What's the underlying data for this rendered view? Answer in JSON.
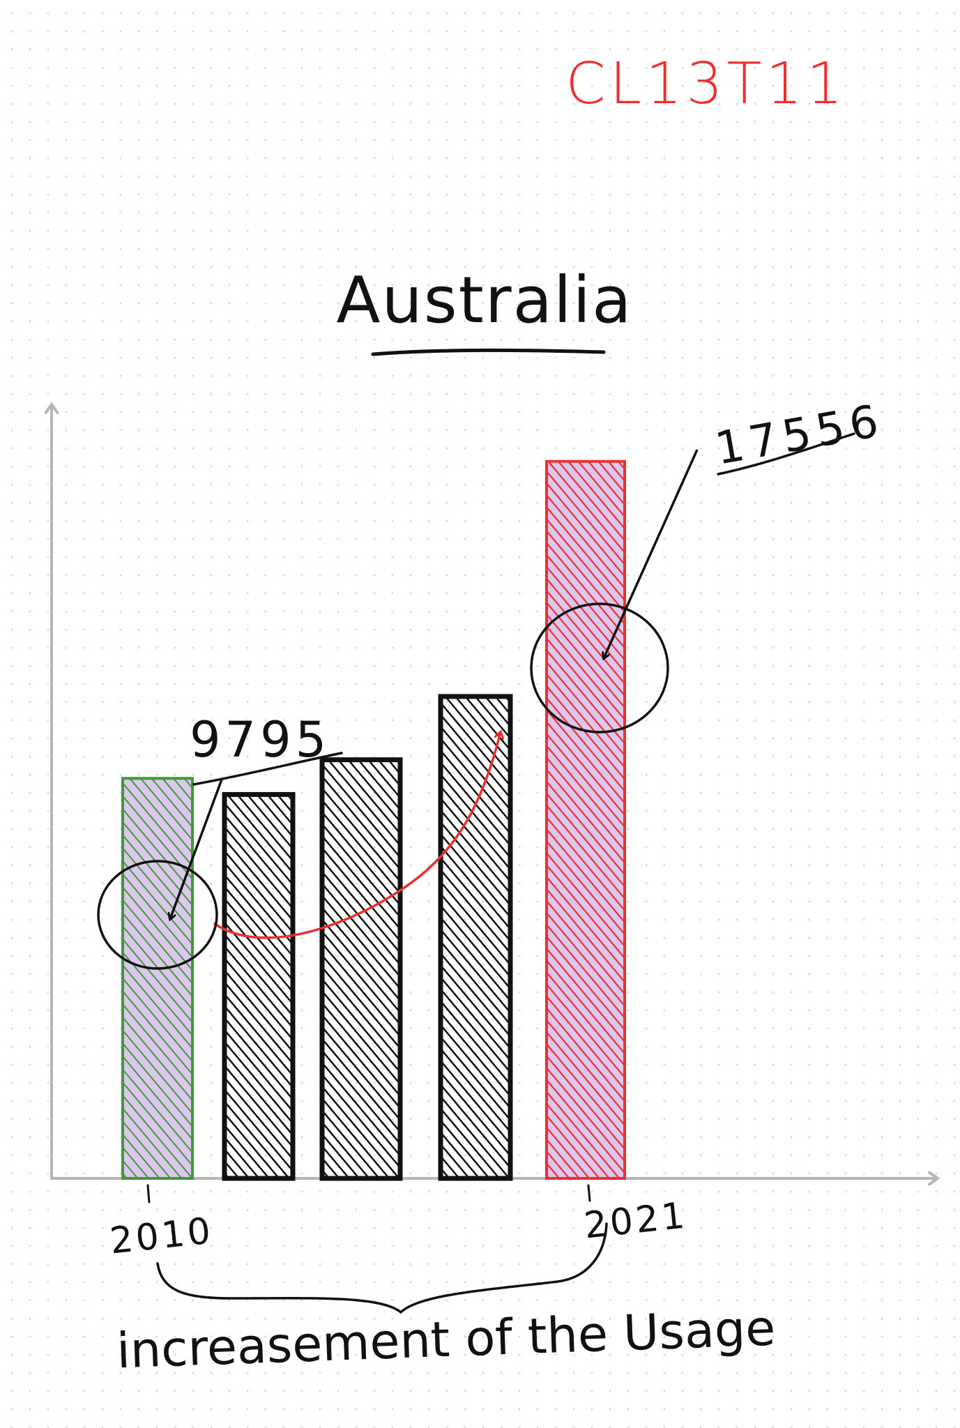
{
  "page": {
    "code_label": "CL13T11",
    "colors": {
      "code_label": "#ee2f2f",
      "ink": "#111111",
      "axis": "#b5b5b5",
      "highlight_bar": "#dcc8ee",
      "first_bar": "#3f9a36",
      "last_bar": "#ee2f2f",
      "middle_bars": "#111111",
      "trend_arrow": "#ee2f2f"
    }
  },
  "chart_data": {
    "type": "bar",
    "title": "Australia",
    "xlabel": "increasement of the Usage",
    "ylabel": "",
    "x_tick_labels": [
      "2010",
      "2021"
    ],
    "values": [
      9795,
      9400,
      10250,
      11800,
      17556
    ],
    "ylim": [
      0,
      21000
    ],
    "bar_colors": [
      "#3f9a36",
      "#111111",
      "#111111",
      "#111111",
      "#ee2f2f"
    ],
    "annotations": [
      "9795",
      "17556"
    ],
    "trend_arrow": true,
    "grid": false,
    "legend": "none"
  }
}
